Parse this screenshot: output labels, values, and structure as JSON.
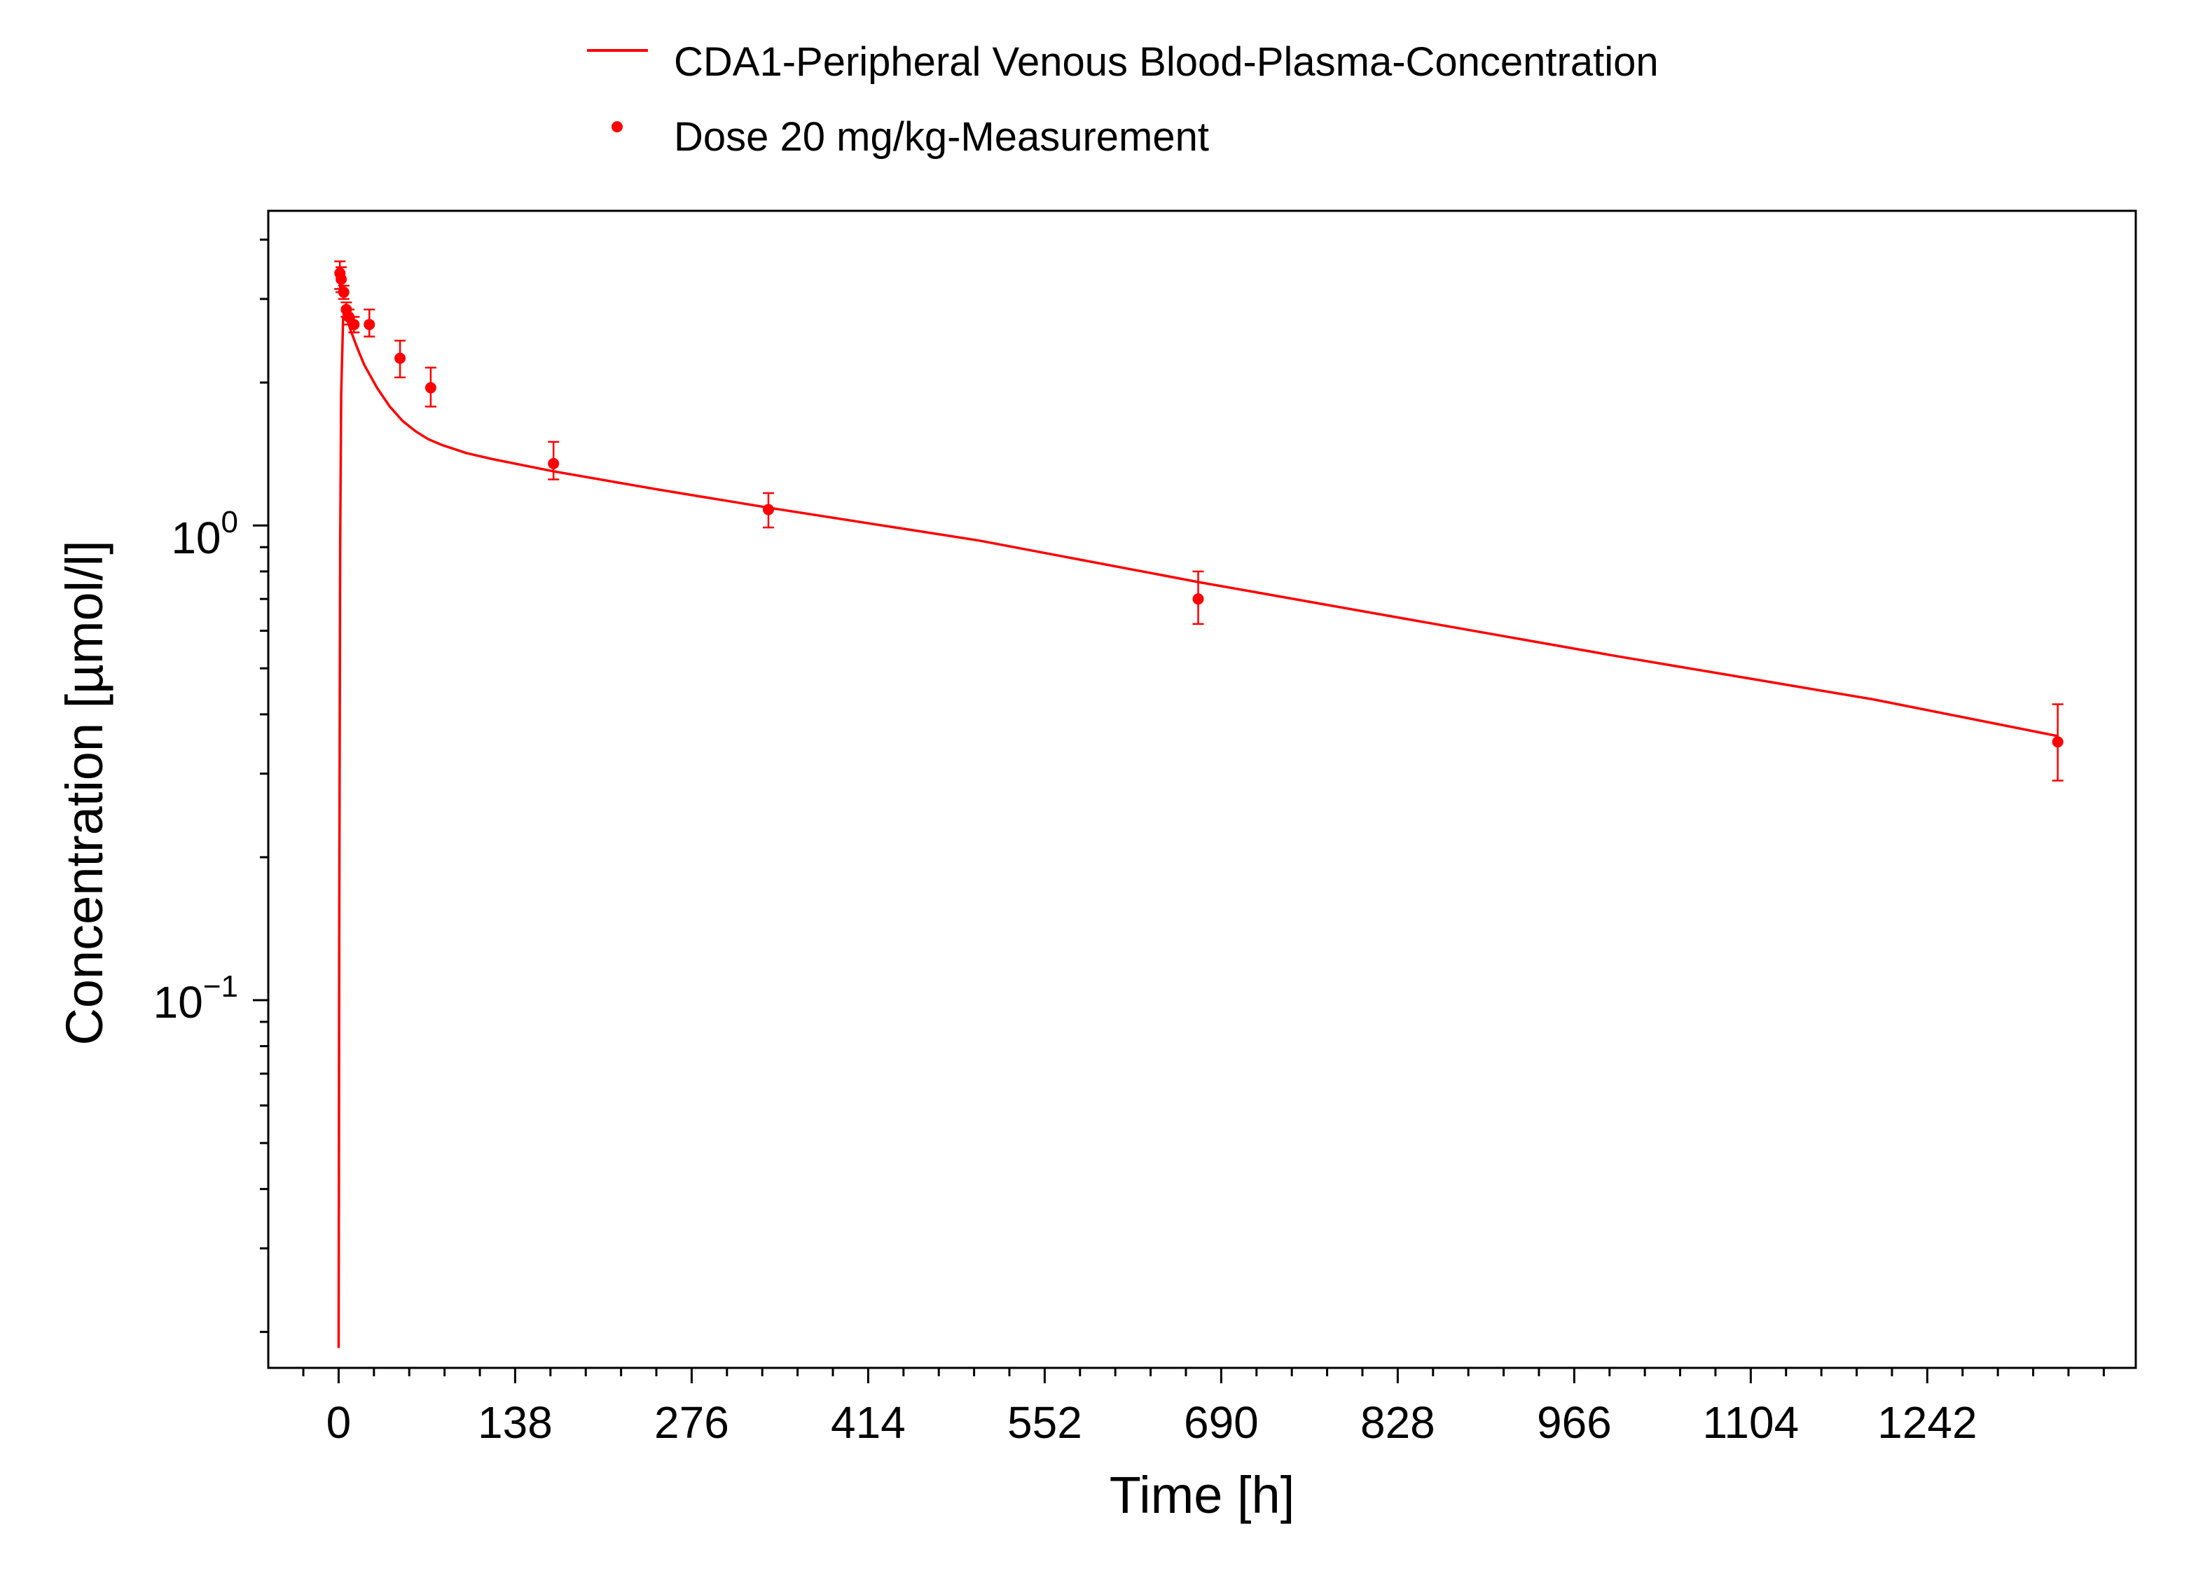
{
  "colors": {
    "series": "#ff0000",
    "axis": "#000000"
  },
  "legend": {
    "position": "top",
    "entries": [
      {
        "label": "CDA1-Peripheral Venous Blood-Plasma-Concentration",
        "style": "line"
      },
      {
        "label": "Dose 20 mg/kg-Measurement",
        "style": "marker"
      }
    ]
  },
  "chart_data": {
    "type": "line",
    "title": "",
    "xlabel": "Time [h]",
    "ylabel": "Concentration [µmol/l]",
    "xlim": [
      -55,
      1405
    ],
    "ylim": [
      0.0168,
      4.6
    ],
    "yscale": "log",
    "grid": false,
    "x_ticks": [
      0,
      138,
      276,
      414,
      552,
      690,
      828,
      966,
      1104,
      1242
    ],
    "y_major_ticks": [
      {
        "value": 1.0,
        "label": "10",
        "exponent": "0"
      },
      {
        "value": 0.1,
        "label": "10",
        "exponent": "−1"
      }
    ],
    "series": [
      {
        "name": "CDA1-Peripheral Venous Blood-Plasma-Concentration",
        "kind": "line",
        "points": [
          [
            0,
            0.0185
          ],
          [
            0.5,
            0.15
          ],
          [
            1.2,
            0.9
          ],
          [
            2,
            1.9
          ],
          [
            3.5,
            2.72
          ],
          [
            4.5,
            2.85
          ],
          [
            6,
            2.75
          ],
          [
            10,
            2.55
          ],
          [
            15,
            2.35
          ],
          [
            20,
            2.18
          ],
          [
            30,
            1.95
          ],
          [
            40,
            1.78
          ],
          [
            50,
            1.66
          ],
          [
            60,
            1.58
          ],
          [
            70,
            1.52
          ],
          [
            80,
            1.48
          ],
          [
            100,
            1.42
          ],
          [
            120,
            1.38
          ],
          [
            168,
            1.3
          ],
          [
            250,
            1.19
          ],
          [
            336,
            1.09
          ],
          [
            500,
            0.93
          ],
          [
            672,
            0.76
          ],
          [
            800,
            0.66
          ],
          [
            1000,
            0.53
          ],
          [
            1200,
            0.43
          ],
          [
            1344,
            0.36
          ]
        ]
      },
      {
        "name": "Dose 20 mg/kg-Measurement",
        "kind": "scatter",
        "points": [
          {
            "x": 1,
            "y": 3.4,
            "lo": 3.15,
            "hi": 3.6
          },
          {
            "x": 2,
            "y": 3.3,
            "lo": 3.1,
            "hi": 3.5
          },
          {
            "x": 4,
            "y": 3.1,
            "lo": 3.0,
            "hi": 3.2
          },
          {
            "x": 6,
            "y": 2.85,
            "lo": 2.75,
            "hi": 2.95
          },
          {
            "x": 8,
            "y": 2.75,
            "lo": 2.65,
            "hi": 2.85
          },
          {
            "x": 12,
            "y": 2.65,
            "lo": 2.55,
            "hi": 2.75
          },
          {
            "x": 24,
            "y": 2.65,
            "lo": 2.5,
            "hi": 2.85
          },
          {
            "x": 48,
            "y": 2.25,
            "lo": 2.05,
            "hi": 2.45
          },
          {
            "x": 72,
            "y": 1.95,
            "lo": 1.78,
            "hi": 2.15
          },
          {
            "x": 168,
            "y": 1.35,
            "lo": 1.25,
            "hi": 1.5
          },
          {
            "x": 336,
            "y": 1.08,
            "lo": 0.99,
            "hi": 1.17
          },
          {
            "x": 672,
            "y": 0.7,
            "lo": 0.62,
            "hi": 0.8
          },
          {
            "x": 1344,
            "y": 0.35,
            "lo": 0.29,
            "hi": 0.42
          }
        ]
      }
    ]
  }
}
